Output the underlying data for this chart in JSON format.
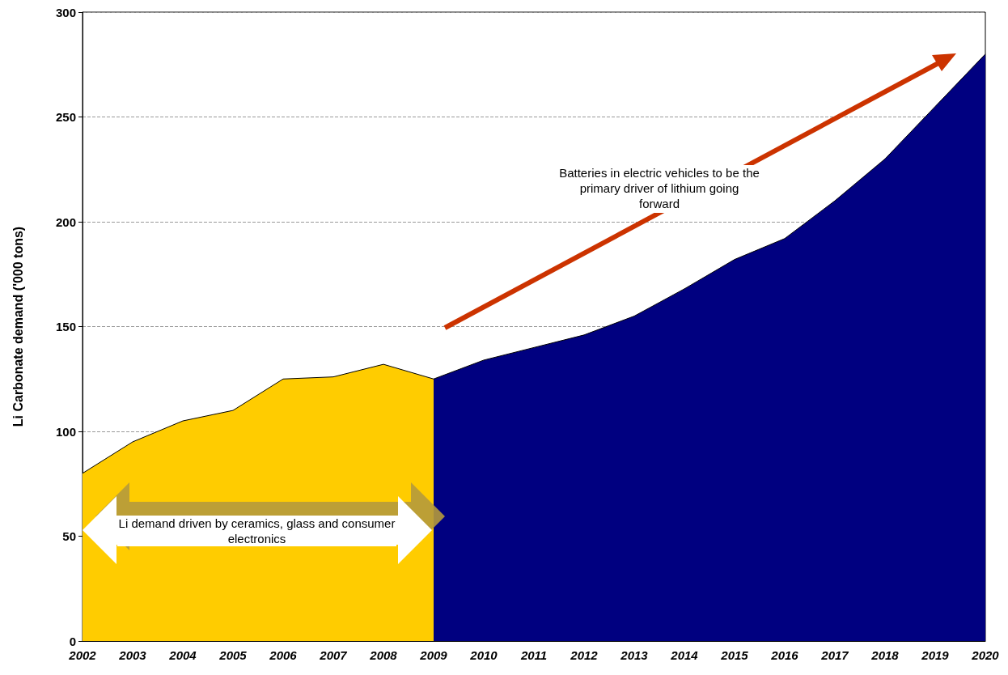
{
  "chart_data": {
    "type": "area",
    "ylabel": "Li Carbonate demand ('000 tons)",
    "categories": [
      "2002",
      "2003",
      "2004",
      "2005",
      "2006",
      "2007",
      "2008",
      "2009",
      "2010",
      "2011",
      "2012",
      "2013",
      "2014",
      "2015",
      "2016",
      "2017",
      "2018",
      "2019",
      "2020"
    ],
    "series": [
      {
        "color": "#ffcc00",
        "values": [
          80,
          95,
          105,
          110,
          125,
          126,
          132,
          125,
          null,
          null,
          null,
          null,
          null,
          null,
          null,
          null,
          null,
          null,
          null
        ]
      },
      {
        "color": "#000080",
        "values": [
          null,
          null,
          null,
          null,
          null,
          null,
          null,
          125,
          134,
          140,
          146,
          155,
          168,
          182,
          192,
          210,
          230,
          255,
          280
        ]
      }
    ],
    "ylim": [
      0,
      300
    ],
    "yticks": [
      0,
      50,
      100,
      150,
      200,
      250,
      300
    ],
    "grid": "y",
    "marker": "none",
    "annotations": [
      "Batteries in electric vehicles to be the primary driver of lithium going forward",
      "Li demand driven by ceramics, glass and consumer electronics"
    ]
  }
}
